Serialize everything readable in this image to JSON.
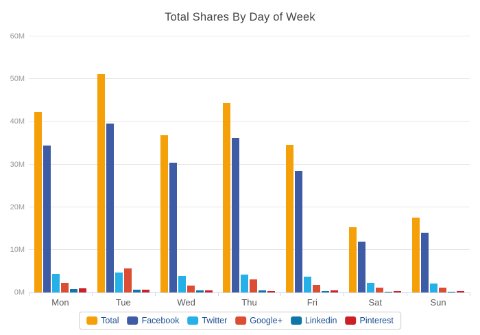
{
  "title": "Total Shares By Day of Week",
  "chart_data": {
    "type": "bar",
    "title": "Total Shares By Day of Week",
    "categories": [
      "Mon",
      "Tue",
      "Wed",
      "Thu",
      "Fri",
      "Sat",
      "Sun"
    ],
    "series": [
      {
        "name": "Total",
        "color": "#F5A009",
        "values": [
          42.3,
          51.2,
          36.9,
          44.4,
          34.6,
          15.3,
          17.6
        ]
      },
      {
        "name": "Facebook",
        "color": "#3E5BA6",
        "values": [
          34.5,
          39.5,
          30.4,
          36.2,
          28.4,
          11.9,
          14.0
        ]
      },
      {
        "name": "Twitter",
        "color": "#25B1E8",
        "values": [
          4.3,
          4.6,
          3.9,
          4.2,
          3.7,
          2.2,
          2.1
        ]
      },
      {
        "name": "Google+",
        "color": "#DC4E34",
        "values": [
          2.2,
          5.6,
          1.6,
          3.1,
          1.7,
          1.2,
          1.2
        ]
      },
      {
        "name": "Linkedin",
        "color": "#0E76A8",
        "values": [
          0.8,
          0.7,
          0.5,
          0.5,
          0.4,
          0.1,
          0.1
        ]
      },
      {
        "name": "Pinterest",
        "color": "#CB2027",
        "values": [
          1.0,
          0.7,
          0.5,
          0.4,
          0.5,
          0.4,
          0.3
        ]
      }
    ],
    "value_unit": "millions",
    "xlabel": "",
    "ylabel": "",
    "ylim": [
      0,
      60
    ],
    "y_ticks": [
      "0M",
      "10M",
      "20M",
      "30M",
      "40M",
      "50M",
      "60M"
    ],
    "grid": true,
    "legend_position": "bottom"
  },
  "colors": {
    "title_text": "#444444",
    "y_tick_text": "#999999",
    "x_tick_text": "#595959",
    "grid_line": "#e6e6e6",
    "axis_line": "#ccd6eb",
    "legend_text": "#1d4f91",
    "legend_border": "#cccccc",
    "background": "#ffffff"
  }
}
